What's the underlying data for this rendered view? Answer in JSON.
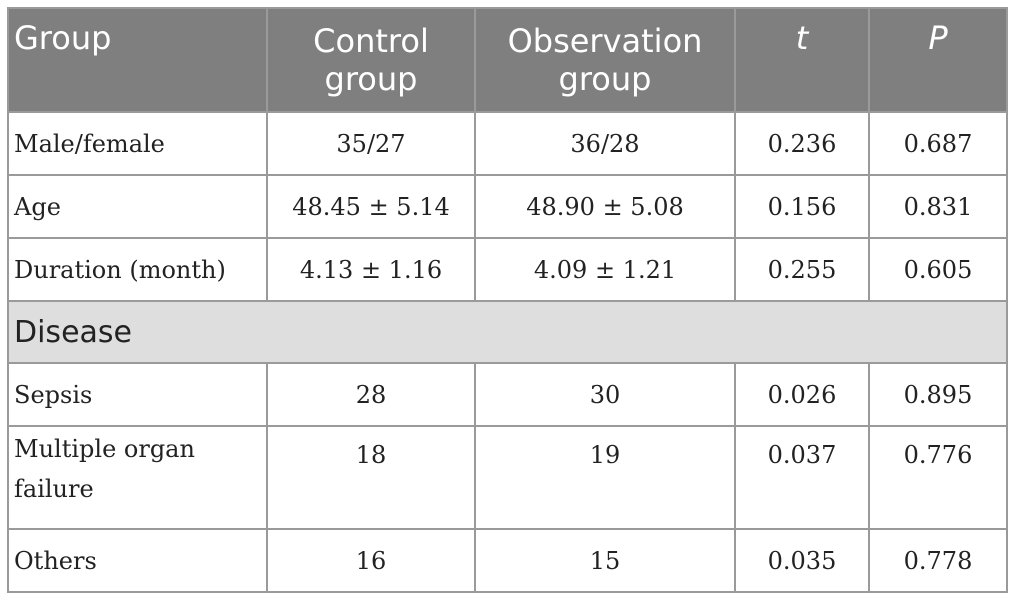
{
  "table": {
    "headers": [
      "Group",
      "Control group",
      "Observation group",
      "t",
      "P"
    ],
    "rows_top": [
      [
        "Male/female",
        "35/27",
        "36/28",
        "0.236",
        "0.687"
      ],
      [
        "Age",
        "48.45 ± 5.14",
        "48.90 ± 5.08",
        "0.156",
        "0.831"
      ],
      [
        "Duration (month)",
        "4.13 ± 1.16",
        "4.09 ± 1.21",
        "0.255",
        "0.605"
      ]
    ],
    "section_label": "Disease",
    "rows_disease": [
      [
        "Sepsis",
        "28",
        "30",
        "0.026",
        "0.895"
      ],
      [
        "Multiple organ failure",
        "18",
        "19",
        "0.037",
        "0.776"
      ],
      [
        "Others",
        "16",
        "15",
        "0.035",
        "0.778"
      ]
    ]
  },
  "colors": {
    "header_bg": "#7f7f7f",
    "section_bg": "#dedede",
    "border": "#9a9a9a"
  }
}
